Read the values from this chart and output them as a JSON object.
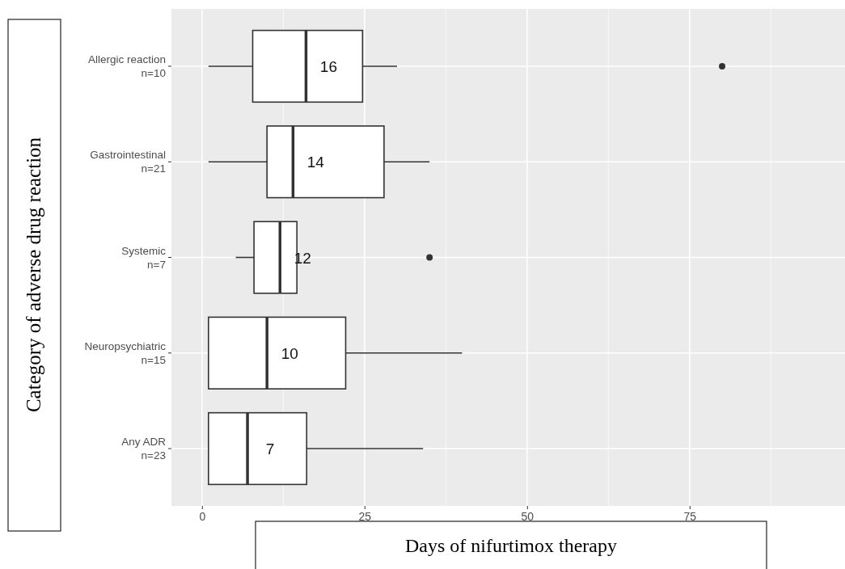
{
  "chart_data": {
    "type": "box",
    "orientation": "horizontal",
    "xlabel": "Days of nifurtimox therapy",
    "ylabel": "Category of adverse drug reaction",
    "categories": [
      "Allergic reaction\nn=10",
      "Gastrointestinal\nn=21",
      "Systemic\nn=7",
      "Neuropsychiatric\nn=15",
      "Any ADR\nn=23"
    ],
    "boxes": [
      {
        "low": 1,
        "q1": 7.8,
        "median": 16,
        "q3": 24.7,
        "high": 30,
        "outliers": [
          80
        ]
      },
      {
        "low": 1,
        "q1": 10,
        "median": 14,
        "q3": 28,
        "high": 35
      },
      {
        "low": 5.2,
        "q1": 8,
        "median": 12,
        "q3": 14.6,
        "high": 14.6,
        "outliers": [
          35
        ]
      },
      {
        "low": 1,
        "q1": 1,
        "median": 10,
        "q3": 22.1,
        "high": 40
      },
      {
        "low": 1,
        "q1": 1,
        "median": 7,
        "q3": 16.1,
        "high": 34
      }
    ],
    "value_labels": [
      "16",
      "14",
      "12",
      "10",
      "7"
    ],
    "xlim": [
      -4.7,
      98.9
    ],
    "xticks": [
      0,
      25,
      50,
      75
    ],
    "grid": true
  }
}
